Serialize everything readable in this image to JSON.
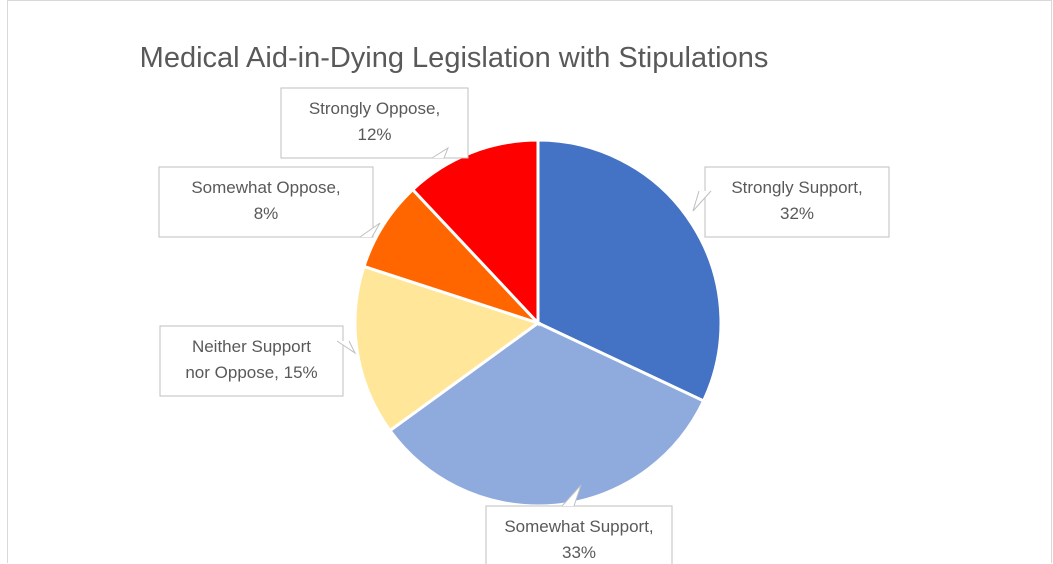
{
  "chart_data": {
    "type": "pie",
    "title": "Medical Aid-in-Dying Legislation with Stipulations",
    "slices": [
      {
        "name": "Strongly Support",
        "value": 32,
        "color": "#4472C4",
        "label_lines": [
          "Strongly Support,",
          "32%"
        ]
      },
      {
        "name": "Somewhat Support",
        "value": 33,
        "color": "#8FAADC",
        "label_lines": [
          "Somewhat Support,",
          "33%"
        ]
      },
      {
        "name": "Neither Support nor Oppose",
        "value": 15,
        "color": "#FFE699",
        "label_lines": [
          "Neither Support",
          "nor Oppose, 15%"
        ]
      },
      {
        "name": "Somewhat Oppose",
        "value": 8,
        "color": "#FF6600",
        "label_lines": [
          "Somewhat Oppose,",
          "8%"
        ]
      },
      {
        "name": "Strongly Oppose",
        "value": 12,
        "color": "#FF0000",
        "label_lines": [
          "Strongly Oppose,",
          "12%"
        ]
      }
    ],
    "legend": "none",
    "data_labels": "callouts"
  }
}
